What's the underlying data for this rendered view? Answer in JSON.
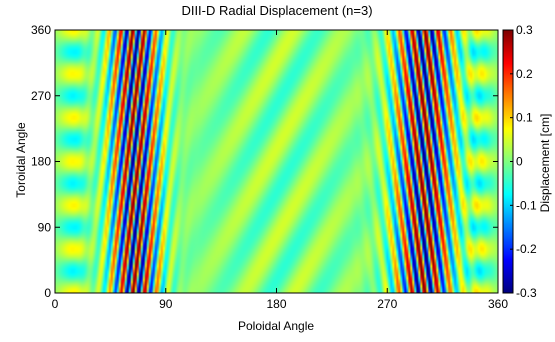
{
  "chart_data": {
    "type": "heatmap",
    "title": "DIII-D Radial Displacement (n=3)",
    "xlabel": "Poloidal Angle",
    "ylabel": "Toroidal Angle",
    "xlim": [
      0,
      360
    ],
    "ylim": [
      0,
      360
    ],
    "x_ticks": [
      0,
      90,
      180,
      270,
      360
    ],
    "y_ticks": [
      0,
      90,
      180,
      270,
      360
    ],
    "x_tick_labels": [
      "0",
      "90",
      "180",
      "270",
      "360"
    ],
    "y_tick_labels": [
      "0",
      "90",
      "180",
      "270",
      "360"
    ],
    "colorbar": {
      "label": "Displacement [cm]",
      "range": [
        -0.3,
        0.3
      ],
      "ticks": [
        -0.3,
        -0.2,
        -0.1,
        0,
        0.1,
        0.2,
        0.3
      ],
      "tick_labels": [
        "-0.3",
        "-0.2",
        "-0.1",
        "0",
        "0.1",
        "0.2",
        "0.3"
      ],
      "colormap": "jet"
    },
    "toroidal_mode_number": 3,
    "field_features": [
      {
        "region": "left band",
        "poloidal_center": 65,
        "amplitude": 0.32,
        "cycles_visible": 3
      },
      {
        "region": "right band",
        "poloidal_center": 300,
        "amplitude": 0.32,
        "cycles_visible": 3
      },
      {
        "region": "middle stripes",
        "poloidal_range": [
          110,
          260
        ],
        "amplitude": 0.05
      },
      {
        "region": "edge spots",
        "poloidal_centers": [
          15,
          345
        ],
        "amplitude": 0.08
      }
    ]
  }
}
